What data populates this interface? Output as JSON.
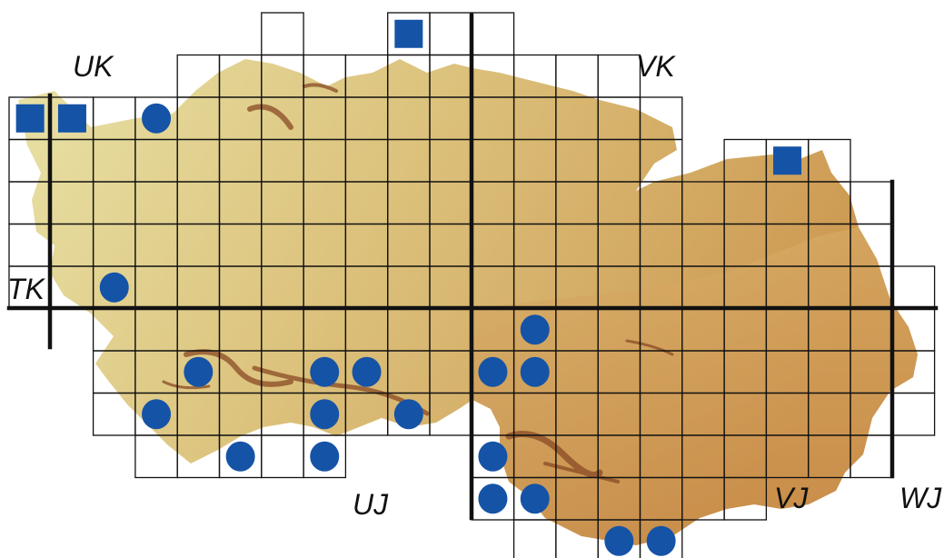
{
  "map": {
    "colors": {
      "background": "#ffffff",
      "relief_light": "#e6dfa3",
      "relief_mid": "#d9b268",
      "relief_dark": "#c98f4a",
      "ridge": "#8a4a24",
      "grid": "#111111",
      "marker": "#1553a6"
    },
    "zone_labels": {
      "uk": "UK",
      "vk": "VK",
      "tk": "TK",
      "uj": "UJ",
      "vj": "VJ",
      "wj": "WJ"
    },
    "legend": {
      "square": "square-marker",
      "circle": "circle-marker"
    }
  }
}
